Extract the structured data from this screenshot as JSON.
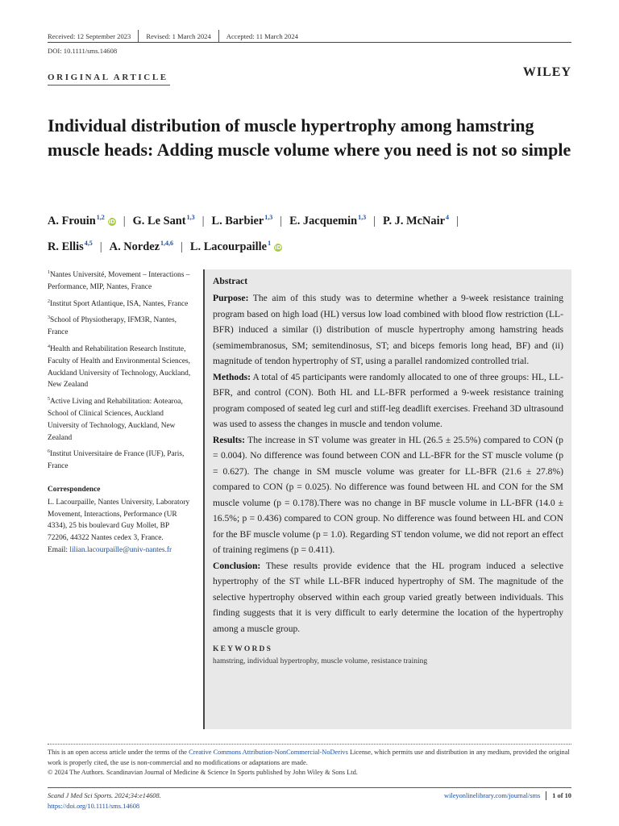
{
  "header": {
    "received": "Received: 12 September 2023",
    "revised": "Revised: 1 March 2024",
    "accepted": "Accepted: 11 March 2024",
    "doi": "DOI: 10.1111/sms.14608",
    "article_type": "ORIGINAL ARTICLE",
    "publisher": "WILEY"
  },
  "title": "Individual distribution of muscle hypertrophy among hamstring muscle heads: Adding muscle volume where you need is not so simple",
  "authors": [
    {
      "name": "A. Frouin",
      "aff": "1,2",
      "orcid": true
    },
    {
      "name": "G. Le Sant",
      "aff": "1,3",
      "orcid": false
    },
    {
      "name": "L. Barbier",
      "aff": "1,3",
      "orcid": false
    },
    {
      "name": "E. Jacquemin",
      "aff": "1,3",
      "orcid": false
    },
    {
      "name": "P. J. McNair",
      "aff": "4",
      "orcid": false
    },
    {
      "name": "R. Ellis",
      "aff": "4,5",
      "orcid": false
    },
    {
      "name": "A. Nordez",
      "aff": "1,4,6",
      "orcid": false
    },
    {
      "name": "L. Lacourpaille",
      "aff": "1",
      "orcid": true
    }
  ],
  "affiliations": [
    {
      "num": "1",
      "text": "Nantes Université, Movement – Interactions – Performance, MIP, Nantes, France"
    },
    {
      "num": "2",
      "text": "Institut Sport Atlantique, ISA, Nantes, France"
    },
    {
      "num": "3",
      "text": "School of Physiotherapy, IFM3R, Nantes, France"
    },
    {
      "num": "4",
      "text": "Health and Rehabilitation Research Institute, Faculty of Health and Environmental Sciences, Auckland University of Technology, Auckland, New Zealand"
    },
    {
      "num": "5",
      "text": "Active Living and Rehabilitation: Aotearoa, School of Clinical Sciences, Auckland University of Technology, Auckland, New Zealand"
    },
    {
      "num": "6",
      "text": "Institut Universitaire de France (IUF), Paris, France"
    }
  ],
  "correspondence": {
    "heading": "Correspondence",
    "text": "L. Lacourpaille, Nantes University, Laboratory Movement, Interactions, Performance (UR 4334), 25 bis boulevard Guy Mollet, BP 72206, 44322 Nantes cedex 3, France.",
    "email_label": "Email:",
    "email": "lilian.lacourpaille@univ-nantes.fr"
  },
  "abstract": {
    "heading": "Abstract",
    "purpose_label": "Purpose:",
    "purpose": "The aim of this study was to determine whether a 9-week resistance training program based on high load (HL) versus low load combined with blood flow restriction (LL-BFR) induced a similar (i) distribution of muscle hypertrophy among hamstring heads (semimembranosus, SM; semitendinosus, ST; and biceps femoris long head, BF) and (ii) magnitude of tendon hypertrophy of ST, using a parallel randomized controlled trial.",
    "methods_label": "Methods:",
    "methods": "A total of 45 participants were randomly allocated to one of three groups: HL, LL-BFR, and control (CON). Both HL and LL-BFR performed a 9-week resistance training program composed of seated leg curl and stiff-leg deadlift exercises. Freehand 3D ultrasound was used to assess the changes in muscle and tendon volume.",
    "results_label": "Results:",
    "results": "The increase in ST volume was greater in HL (26.5 ± 25.5%) compared to CON (p = 0.004). No difference was found between CON and LL-BFR for the ST muscle volume (p = 0.627). The change in SM muscle volume was greater for LL-BFR (21.6 ± 27.8%) compared to CON (p = 0.025). No difference was found between HL and CON for the SM muscle volume (p = 0.178).There was no change in BF muscle volume in LL-BFR (14.0 ± 16.5%; p = 0.436) compared to CON group. No difference was found between HL and CON for the BF muscle volume (p = 1.0). Regarding ST tendon volume, we did not report an effect of training regimens (p = 0.411).",
    "conclusion_label": "Conclusion:",
    "conclusion": "These results provide evidence that the HL program induced a selective hypertrophy of the ST while LL-BFR induced hypertrophy of SM. The magnitude of the selective hypertrophy observed within each group varied greatly between individuals. This finding suggests that it is very difficult to early determine the location of the hypertrophy among a muscle group.",
    "keywords_heading": "KEYWORDS",
    "keywords": "hamstring, individual hypertrophy, muscle volume, resistance training"
  },
  "footer": {
    "license_pre": "This is an open access article under the terms of the",
    "license_link": "Creative Commons Attribution-NonCommercial-NoDerivs",
    "license_post": "License, which permits use and distribution in any medium, provided the original work is properly cited, the use is non-commercial and no modifications or adaptations are made.",
    "copyright": "© 2024 The Authors. Scandinavian Journal of Medicine & Science In Sports published by John Wiley & Sons Ltd.",
    "citation": "Scand J Med Sci Sports. 2024;34:e14608.",
    "doi_url": "https://doi.org/10.1111/sms.14608",
    "journal_url": "wileyonlinelibrary.com/journal/sms",
    "page": "1 of 10"
  }
}
